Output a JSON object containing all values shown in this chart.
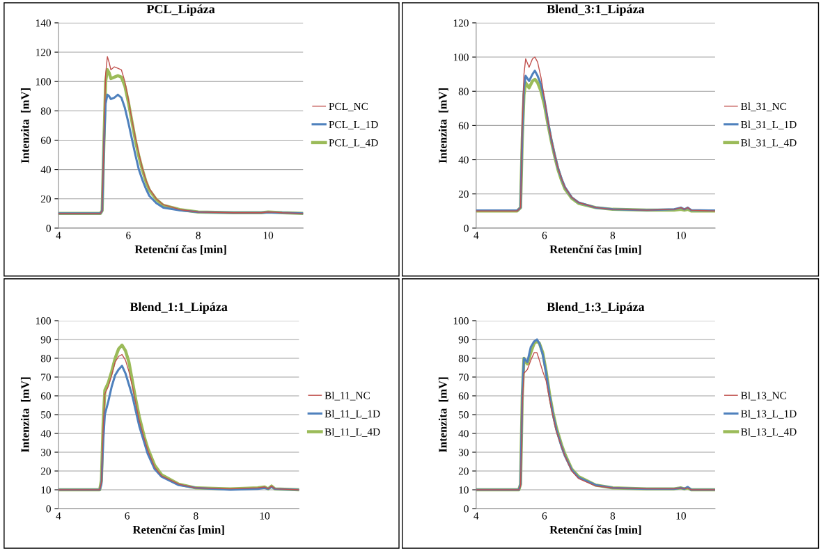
{
  "chart_data": [
    {
      "type": "line",
      "title": "PCL_Lipáza",
      "xlabel": "Retenční čas [min]",
      "ylabel": "Intenzita  [mV]",
      "xlim": [
        4,
        11
      ],
      "xticks": [
        4,
        6,
        8,
        10
      ],
      "ylim": [
        0,
        140
      ],
      "yticks": [
        0,
        20,
        40,
        60,
        80,
        100,
        120,
        140
      ],
      "grid": "y",
      "legend": "right",
      "marker": "none",
      "line_style": "solid",
      "x": [
        4,
        5.2,
        5.25,
        5.3,
        5.35,
        5.4,
        5.45,
        5.5,
        5.6,
        5.7,
        5.8,
        5.9,
        6.0,
        6.1,
        6.2,
        6.3,
        6.4,
        6.5,
        6.6,
        6.8,
        7.0,
        7.5,
        8,
        9,
        9.8,
        10.0,
        10.2,
        10.4,
        11
      ],
      "series": [
        {
          "name": "PCL_NC",
          "color": "#c0504d",
          "values": [
            10,
            10,
            12,
            60,
            105,
            117,
            113,
            108,
            110,
            109,
            108,
            100,
            88,
            74,
            62,
            51,
            41,
            33,
            27,
            20,
            16,
            12.5,
            11,
            10.5,
            10.5,
            11,
            10.8,
            10.5,
            10
          ]
        },
        {
          "name": "PCL_L_1D",
          "color": "#4f81bd",
          "values": [
            10,
            10,
            12,
            55,
            85,
            91,
            90,
            88,
            89,
            91,
            89,
            82,
            72,
            61,
            50,
            40,
            33,
            27,
            22,
            17,
            14,
            12,
            11,
            10.5,
            10.5,
            10.8,
            10.5,
            10.5,
            10
          ]
        },
        {
          "name": "PCL_L_4D",
          "color": "#9bbb59",
          "values": [
            10,
            10,
            12,
            58,
            100,
            108,
            106,
            102,
            103,
            104,
            103,
            97,
            86,
            73,
            60,
            49,
            40,
            32,
            26,
            19.5,
            15.5,
            12.5,
            11,
            10.5,
            10.5,
            11,
            10.8,
            10.5,
            10
          ]
        }
      ]
    },
    {
      "type": "line",
      "title": "Blend_3:1_Lipáza",
      "xlabel": "Retenční čas [min]",
      "ylabel": "Intenzita  [mV]",
      "xlim": [
        4,
        11
      ],
      "xticks": [
        4,
        6,
        8,
        10
      ],
      "ylim": [
        0,
        120
      ],
      "yticks": [
        0,
        20,
        40,
        60,
        80,
        100,
        120
      ],
      "grid": "y",
      "legend": "right",
      "marker": "none",
      "line_style": "solid",
      "x": [
        4,
        5.2,
        5.3,
        5.35,
        5.4,
        5.45,
        5.55,
        5.65,
        5.72,
        5.8,
        5.9,
        6.0,
        6.1,
        6.2,
        6.3,
        6.4,
        6.5,
        6.6,
        6.8,
        7.0,
        7.5,
        8,
        9,
        9.8,
        10.0,
        10.1,
        10.2,
        10.3,
        11
      ],
      "series": [
        {
          "name": "Bl_31_NC",
          "color": "#c0504d",
          "values": [
            10,
            10,
            12,
            60,
            90,
            99,
            94,
            99,
            100,
            97,
            88,
            76,
            63,
            52,
            43,
            35,
            29,
            24,
            18,
            15,
            12,
            11,
            10.5,
            11,
            12,
            11,
            12,
            10.5,
            10
          ]
        },
        {
          "name": "Bl_31_L_1D",
          "color": "#4f81bd",
          "values": [
            10.3,
            10.3,
            12,
            55,
            82,
            89,
            86,
            90,
            92,
            89,
            84,
            75,
            63,
            52,
            43,
            35,
            29,
            24,
            18,
            15,
            12,
            11,
            10.5,
            11,
            12,
            11,
            12,
            10.5,
            10.3
          ]
        },
        {
          "name": "Bl_31_L_4D",
          "color": "#9bbb59",
          "values": [
            10,
            10,
            12,
            52,
            78,
            85,
            82,
            86,
            87,
            85,
            80,
            72,
            61,
            51,
            42,
            34,
            28,
            23,
            17.5,
            14.5,
            12,
            11,
            10.5,
            10.5,
            11,
            10.5,
            11,
            10,
            10
          ]
        }
      ]
    },
    {
      "type": "line",
      "title": "Blend_1:1_Lipáza",
      "xlabel": "Retenční čas [min]",
      "ylabel": "Intenzita  [mV]",
      "xlim": [
        4,
        11
      ],
      "xticks": [
        4,
        6,
        8,
        10
      ],
      "ylim": [
        0,
        100
      ],
      "yticks": [
        0,
        10,
        20,
        30,
        40,
        50,
        60,
        70,
        80,
        90,
        100
      ],
      "grid": "y",
      "legend": "right",
      "marker": "none",
      "line_style": "solid",
      "x": [
        4,
        5.2,
        5.25,
        5.3,
        5.35,
        5.45,
        5.55,
        5.65,
        5.75,
        5.85,
        5.95,
        6.05,
        6.15,
        6.25,
        6.35,
        6.5,
        6.6,
        6.8,
        7.0,
        7.5,
        8,
        9,
        9.8,
        10.0,
        10.1,
        10.2,
        10.3,
        11
      ],
      "series": [
        {
          "name": "Bl_11_NC",
          "color": "#c0504d",
          "values": [
            10,
            10,
            14,
            42,
            61,
            65,
            71,
            78,
            81,
            82,
            79,
            73,
            65,
            56,
            47,
            37,
            31,
            22,
            17.5,
            13,
            11,
            10.5,
            11,
            11.5,
            10.5,
            12,
            10.5,
            10
          ]
        },
        {
          "name": "Bl_11_L_1D",
          "color": "#4f81bd",
          "values": [
            10,
            10,
            13,
            35,
            50,
            57,
            65,
            71,
            74,
            76,
            72,
            66,
            60,
            52,
            44,
            35,
            29,
            21,
            17,
            12.5,
            11,
            10,
            10.5,
            11,
            10.5,
            11.5,
            10.5,
            10
          ]
        },
        {
          "name": "Bl_11_L_4D",
          "color": "#9bbb59",
          "values": [
            10,
            10,
            15,
            45,
            63,
            67,
            73,
            80,
            85,
            87,
            84,
            78,
            68,
            58,
            49,
            38,
            32,
            23,
            18,
            13,
            11,
            10.5,
            11,
            11.5,
            10.5,
            12,
            10.5,
            10
          ]
        }
      ]
    },
    {
      "type": "line",
      "title": "Blend_1:3_Lipáza",
      "xlabel": "Retenční čas [min]",
      "ylabel": "Intenzita  [mV]",
      "xlim": [
        4,
        11
      ],
      "xticks": [
        4,
        6,
        8,
        10
      ],
      "ylim": [
        0,
        100
      ],
      "yticks": [
        0,
        10,
        20,
        30,
        40,
        50,
        60,
        70,
        80,
        90,
        100
      ],
      "grid": "y",
      "legend": "right",
      "marker": "none",
      "line_style": "solid",
      "x": [
        4,
        5.25,
        5.3,
        5.35,
        5.4,
        5.5,
        5.6,
        5.7,
        5.78,
        5.85,
        5.95,
        6.05,
        6.15,
        6.25,
        6.35,
        6.5,
        6.6,
        6.8,
        7.0,
        7.5,
        8,
        9,
        9.8,
        10.0,
        10.1,
        10.2,
        10.3,
        11
      ],
      "series": [
        {
          "name": "Bl_13_NC",
          "color": "#c0504d",
          "values": [
            10,
            10,
            12,
            55,
            72,
            74,
            79,
            83,
            83,
            79,
            73,
            68,
            58,
            49,
            41,
            33,
            28,
            20,
            16,
            12,
            11,
            10.5,
            10.5,
            11,
            10.5,
            11,
            10,
            10
          ]
        },
        {
          "name": "Bl_13_L_1D",
          "color": "#4f81bd",
          "values": [
            10,
            10,
            13,
            60,
            80,
            78,
            86,
            89,
            90,
            88,
            82,
            72,
            60,
            50,
            42,
            33,
            28,
            20.5,
            16.5,
            12.5,
            11,
            10.5,
            10.5,
            11,
            10.5,
            11.5,
            10,
            10
          ]
        },
        {
          "name": "Bl_13_L_4D",
          "color": "#9bbb59",
          "values": [
            10,
            10,
            13,
            60,
            80,
            77,
            83,
            88,
            89,
            88,
            83,
            73,
            61,
            51,
            43,
            34,
            29,
            21,
            17,
            12.5,
            11,
            10.5,
            10.5,
            11,
            10.5,
            11,
            10,
            10
          ]
        }
      ]
    }
  ]
}
